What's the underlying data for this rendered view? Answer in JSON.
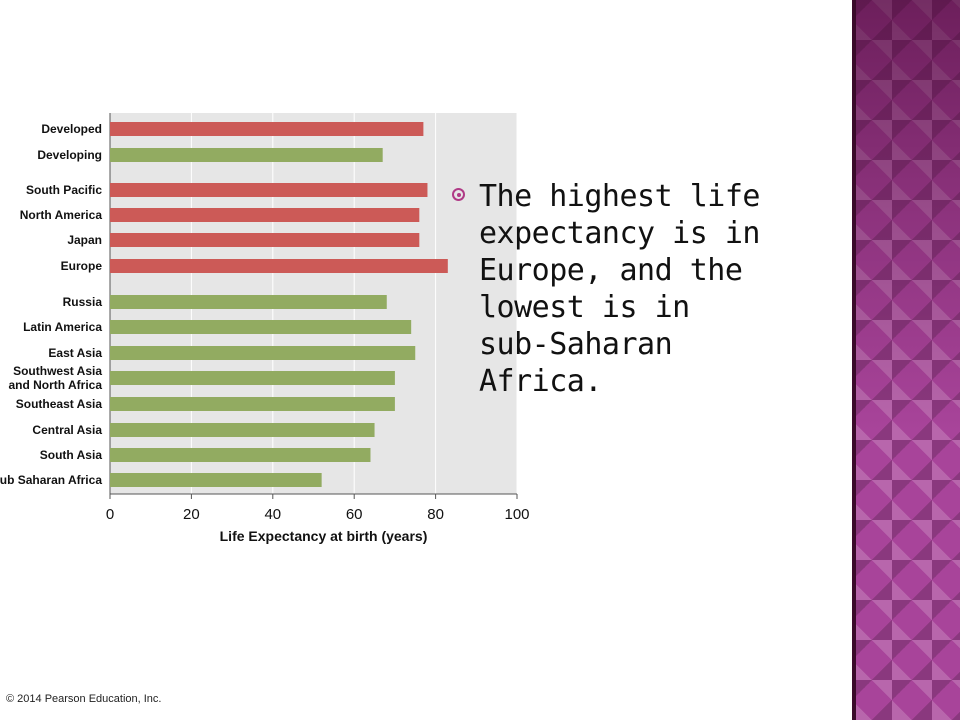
{
  "copyright": "© 2014 Pearson Education, Inc.",
  "bullet": {
    "text": "The highest life expectancy is in Europe, and the lowest is in sub-Saharan Africa."
  },
  "colors": {
    "developed_bar": "#cc5a57",
    "developing_bar": "#92ab61",
    "plot_bg": "#e6e6e6",
    "grid": "#ffffff",
    "accent": "#a8449a"
  },
  "chart_data": {
    "type": "bar",
    "orientation": "horizontal",
    "xlabel": "Life Expectancy at birth (years)",
    "xlim": [
      0,
      100
    ],
    "xticks": [
      0,
      20,
      40,
      60,
      80,
      100
    ],
    "grid": true,
    "categories": [
      "Developed",
      "Developing",
      "South Pacific",
      "North America",
      "Japan",
      "Europe",
      "Russia",
      "Latin America",
      "East Asia",
      "Southwest Asia and North Africa",
      "Southeast Asia",
      "Central Asia",
      "South Asia",
      "Sub Saharan Africa"
    ],
    "values": [
      77,
      67,
      78,
      76,
      76,
      83,
      68,
      74,
      75,
      70,
      70,
      65,
      64,
      52
    ],
    "groups": [
      "developed",
      "developing",
      "developed",
      "developed",
      "developed",
      "developed",
      "developing",
      "developing",
      "developing",
      "developing",
      "developing",
      "developing",
      "developing",
      "developing"
    ]
  }
}
